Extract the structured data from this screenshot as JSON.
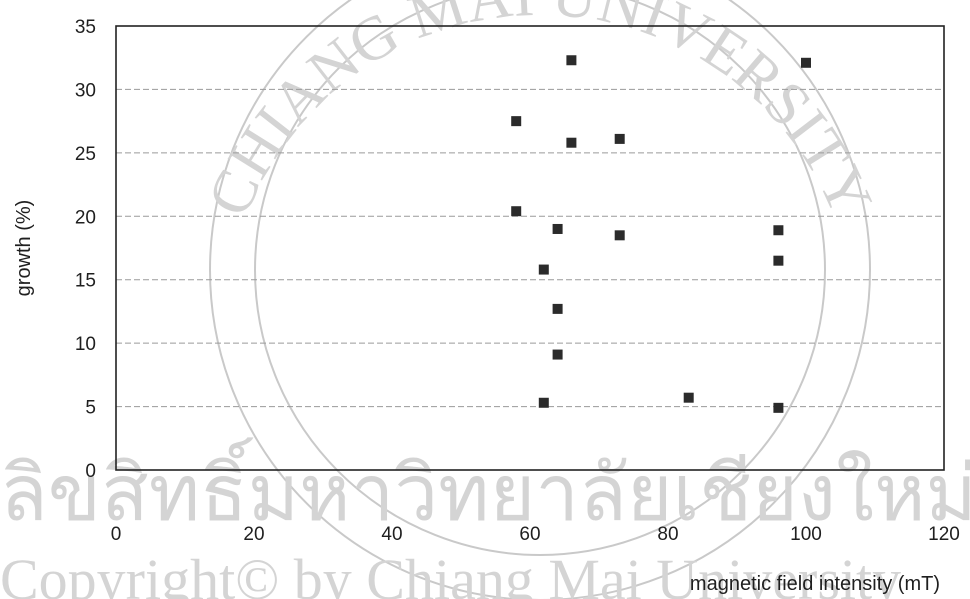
{
  "chart_data": {
    "type": "scatter",
    "title": "",
    "xlabel": "magnetic field intensity (mT)",
    "ylabel": "growth (%)",
    "xlim": [
      0,
      120
    ],
    "ylim": [
      0,
      35
    ],
    "x_ticks": [
      "0",
      "20",
      "40",
      "60",
      "80",
      "100",
      "120"
    ],
    "y_ticks": [
      "0",
      "5",
      "10",
      "15",
      "20",
      "25",
      "30",
      "35"
    ],
    "grid": "horizontal",
    "legend": "none",
    "marker_color": "#2b2b2b",
    "series": [
      {
        "points": [
          {
            "x": 58,
            "y": 27.5
          },
          {
            "x": 58,
            "y": 20.4
          },
          {
            "x": 62,
            "y": 15.8
          },
          {
            "x": 62,
            "y": 5.3
          },
          {
            "x": 64,
            "y": 19.0
          },
          {
            "x": 64,
            "y": 12.7
          },
          {
            "x": 64,
            "y": 9.1
          },
          {
            "x": 66,
            "y": 32.3
          },
          {
            "x": 66,
            "y": 25.8
          },
          {
            "x": 73,
            "y": 26.1
          },
          {
            "x": 73,
            "y": 18.5
          },
          {
            "x": 83,
            "y": 5.7
          },
          {
            "x": 96,
            "y": 18.9
          },
          {
            "x": 96,
            "y": 16.5
          },
          {
            "x": 96,
            "y": 4.9
          },
          {
            "x": 100,
            "y": 32.1
          }
        ]
      }
    ]
  },
  "watermark": {
    "arc_text": "CHIANG MAI UNIVERSITY",
    "line1": "ลิขสิทธิ์มหาวิทยาลัยเชียงใหม่",
    "line2": "Copyright© by Chiang Mai University"
  }
}
